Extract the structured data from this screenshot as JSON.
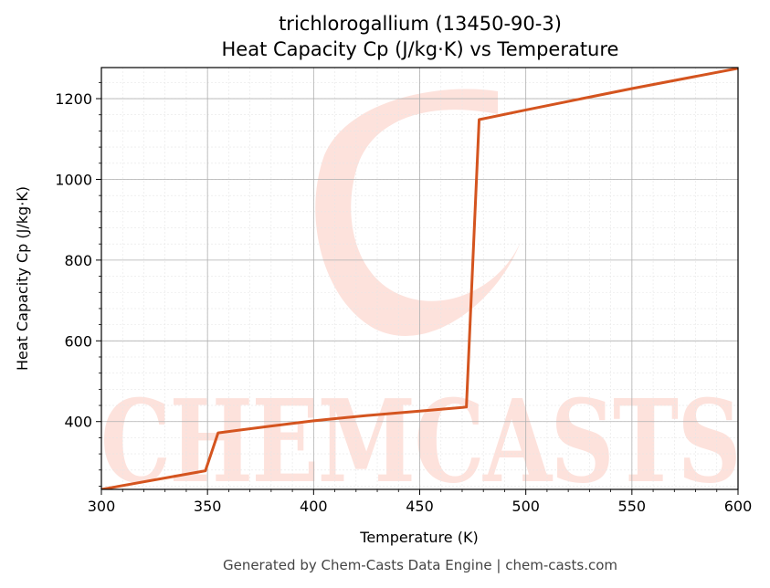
{
  "chart_data": {
    "type": "line",
    "title": "trichlorogallium (13450-90-3)",
    "subtitle": "Heat Capacity Cp (J/kg·K) vs Temperature",
    "xlabel": "Temperature (K)",
    "ylabel": "Heat Capacity Cp (J/kg·K)",
    "xlim": [
      300,
      600
    ],
    "ylim": [
      232,
      1277
    ],
    "xticks": [
      300,
      350,
      400,
      450,
      500,
      550,
      600
    ],
    "yticks": [
      400,
      600,
      800,
      1000,
      1200
    ],
    "xtick_labels": [
      "300",
      "350",
      "400",
      "450",
      "500",
      "550",
      "600"
    ],
    "ytick_labels": [
      "400",
      "600",
      "800",
      "1000",
      "1200"
    ],
    "grid": true,
    "series": [
      {
        "color": "#d4541f",
        "x": [
          300,
          349,
          355,
          380,
          400,
          425,
          450,
          472,
          478,
          500,
          550,
          600
        ],
        "y": [
          232,
          278,
          372,
          389,
          402,
          415,
          426,
          436,
          1148,
          1172,
          1225,
          1275
        ]
      }
    ]
  },
  "watermark": {
    "text": "CHEMCASTS",
    "color": "#fde2dc"
  },
  "footer": "Generated by Chem-Casts Data Engine | chem-casts.com"
}
